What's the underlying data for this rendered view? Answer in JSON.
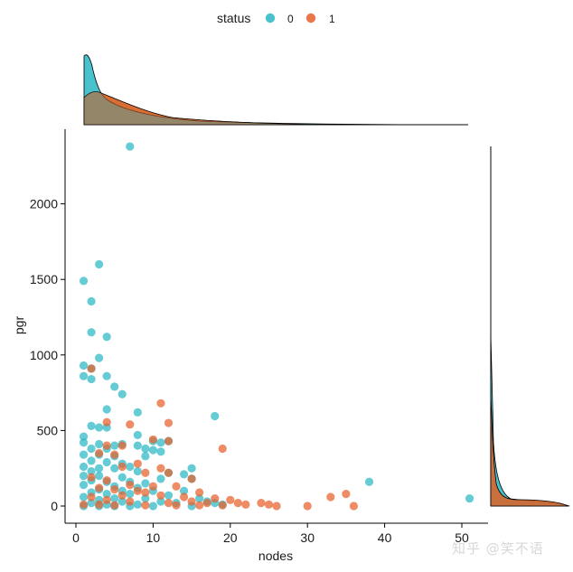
{
  "chart_data": {
    "type": "scatter",
    "xlabel": "nodes",
    "ylabel": "pgr",
    "xlim": [
      -2,
      53
    ],
    "ylim": [
      -100,
      2500
    ],
    "xticks": [
      0,
      10,
      20,
      30,
      40,
      50
    ],
    "yticks": [
      0,
      500,
      1000,
      1500,
      2000
    ],
    "grid": false,
    "legend": {
      "title": "status",
      "placement": "top",
      "entries": [
        "0",
        "1"
      ]
    },
    "colors": {
      "0": "#2ab7c4",
      "1": "#e85f2b"
    },
    "series": [
      {
        "name": "0",
        "points": [
          [
            7,
            2380
          ],
          [
            3,
            1600
          ],
          [
            1,
            1490
          ],
          [
            2,
            1355
          ],
          [
            2,
            1150
          ],
          [
            4,
            1120
          ],
          [
            3,
            980
          ],
          [
            1,
            930
          ],
          [
            2,
            910
          ],
          [
            1,
            860
          ],
          [
            4,
            860
          ],
          [
            2,
            840
          ],
          [
            5,
            790
          ],
          [
            6,
            740
          ],
          [
            4,
            640
          ],
          [
            8,
            620
          ],
          [
            18,
            595
          ],
          [
            2,
            530
          ],
          [
            3,
            520
          ],
          [
            4,
            520
          ],
          [
            1,
            460
          ],
          [
            8,
            470
          ],
          [
            10,
            430
          ],
          [
            11,
            420
          ],
          [
            1,
            420
          ],
          [
            3,
            410
          ],
          [
            5,
            400
          ],
          [
            6,
            410
          ],
          [
            8,
            400
          ],
          [
            9,
            380
          ],
          [
            12,
            430
          ],
          [
            2,
            380
          ],
          [
            4,
            380
          ],
          [
            10,
            370
          ],
          [
            11,
            360
          ],
          [
            1,
            340
          ],
          [
            3,
            340
          ],
          [
            5,
            330
          ],
          [
            2,
            300
          ],
          [
            4,
            290
          ],
          [
            6,
            280
          ],
          [
            7,
            260
          ],
          [
            9,
            330
          ],
          [
            1,
            260
          ],
          [
            3,
            250
          ],
          [
            5,
            250
          ],
          [
            2,
            230
          ],
          [
            8,
            230
          ],
          [
            12,
            220
          ],
          [
            15,
            250
          ],
          [
            14,
            210
          ],
          [
            1,
            200
          ],
          [
            3,
            200
          ],
          [
            6,
            190
          ],
          [
            11,
            180
          ],
          [
            15,
            180
          ],
          [
            2,
            170
          ],
          [
            4,
            160
          ],
          [
            7,
            160
          ],
          [
            9,
            150
          ],
          [
            1,
            140
          ],
          [
            5,
            130
          ],
          [
            8,
            120
          ],
          [
            3,
            110
          ],
          [
            6,
            100
          ],
          [
            10,
            100
          ],
          [
            14,
            100
          ],
          [
            2,
            90
          ],
          [
            4,
            80
          ],
          [
            7,
            80
          ],
          [
            12,
            70
          ],
          [
            1,
            60
          ],
          [
            5,
            50
          ],
          [
            9,
            50
          ],
          [
            16,
            50
          ],
          [
            3,
            40
          ],
          [
            6,
            30
          ],
          [
            11,
            30
          ],
          [
            17,
            30
          ],
          [
            18,
            20
          ],
          [
            2,
            20
          ],
          [
            4,
            10
          ],
          [
            8,
            10
          ],
          [
            13,
            20
          ],
          [
            19,
            10
          ],
          [
            1,
            0
          ],
          [
            3,
            0
          ],
          [
            5,
            0
          ],
          [
            7,
            0
          ],
          [
            10,
            0
          ],
          [
            15,
            0
          ],
          [
            38,
            160
          ],
          [
            51,
            50
          ]
        ]
      },
      {
        "name": "1",
        "points": [
          [
            2,
            910
          ],
          [
            11,
            680
          ],
          [
            4,
            555
          ],
          [
            12,
            550
          ],
          [
            7,
            540
          ],
          [
            10,
            440
          ],
          [
            12,
            430
          ],
          [
            4,
            400
          ],
          [
            6,
            400
          ],
          [
            19,
            380
          ],
          [
            3,
            350
          ],
          [
            5,
            340
          ],
          [
            8,
            280
          ],
          [
            11,
            250
          ],
          [
            12,
            220
          ],
          [
            6,
            260
          ],
          [
            9,
            220
          ],
          [
            15,
            180
          ],
          [
            2,
            190
          ],
          [
            4,
            170
          ],
          [
            7,
            140
          ],
          [
            10,
            130
          ],
          [
            13,
            130
          ],
          [
            3,
            120
          ],
          [
            5,
            110
          ],
          [
            8,
            100
          ],
          [
            9,
            90
          ],
          [
            16,
            90
          ],
          [
            6,
            70
          ],
          [
            11,
            70
          ],
          [
            14,
            60
          ],
          [
            18,
            50
          ],
          [
            20,
            40
          ],
          [
            2,
            60
          ],
          [
            4,
            40
          ],
          [
            7,
            30
          ],
          [
            12,
            20
          ],
          [
            15,
            30
          ],
          [
            17,
            20
          ],
          [
            21,
            20
          ],
          [
            1,
            10
          ],
          [
            3,
            10
          ],
          [
            5,
            5
          ],
          [
            9,
            5
          ],
          [
            13,
            5
          ],
          [
            16,
            5
          ],
          [
            19,
            5
          ],
          [
            22,
            10
          ],
          [
            24,
            20
          ],
          [
            25,
            10
          ],
          [
            26,
            0
          ],
          [
            30,
            0
          ],
          [
            33,
            60
          ],
          [
            35,
            80
          ],
          [
            36,
            0
          ]
        ]
      }
    ]
  },
  "watermark": "知乎 @笑不语"
}
